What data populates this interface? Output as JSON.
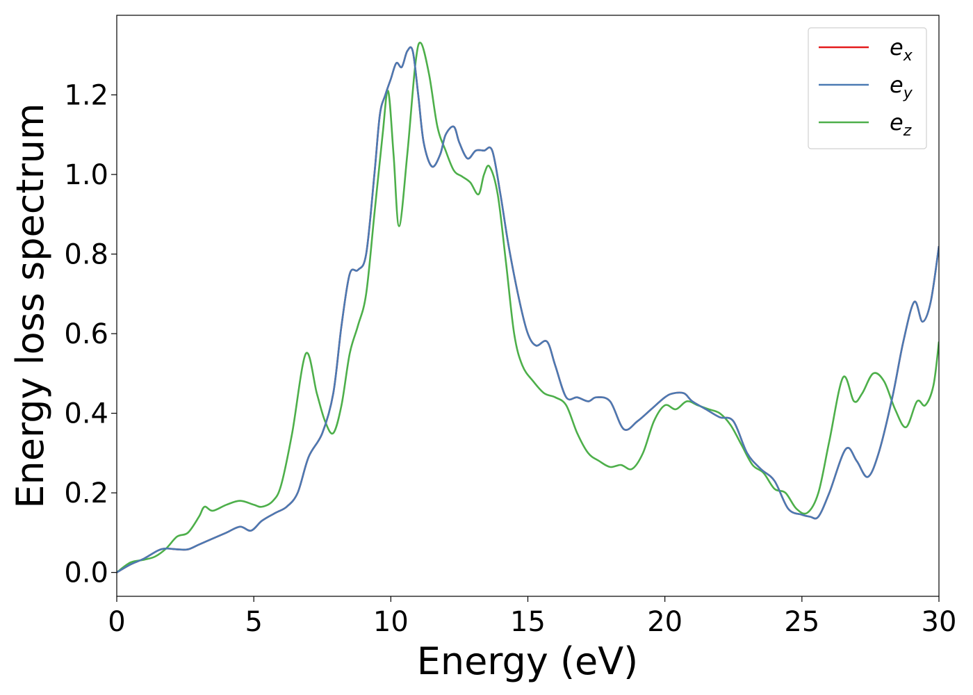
{
  "chart_data": {
    "type": "line",
    "xlabel": "Energy (eV)",
    "ylabel": "Energy loss spectrum",
    "xlim": [
      0,
      30
    ],
    "ylim": [
      -0.06,
      1.4
    ],
    "xticks": [
      0,
      5,
      10,
      15,
      20,
      25,
      30
    ],
    "xtick_labels": [
      "0",
      "5",
      "10",
      "15",
      "20",
      "25",
      "30"
    ],
    "yticks": [
      0.0,
      0.2,
      0.4,
      0.6,
      0.8,
      1.0,
      1.2
    ],
    "ytick_labels": [
      "0.0",
      "0.2",
      "0.4",
      "0.6",
      "0.8",
      "1.0",
      "1.2"
    ],
    "grid": false,
    "legend_position": "top-right",
    "series": [
      {
        "name": "e_x",
        "label_main": "e",
        "label_sub": "x",
        "color": "#e41a1c",
        "x": [
          0,
          0.5,
          1,
          1.5,
          1.8,
          2.2,
          2.6,
          3,
          3.5,
          4,
          4.5,
          4.9,
          5.3,
          5.8,
          6.2,
          6.6,
          7,
          7.5,
          7.9,
          8.2,
          8.5,
          8.8,
          9.1,
          9.4,
          9.6,
          9.8,
          10,
          10.2,
          10.4,
          10.6,
          10.8,
          11,
          11.2,
          11.5,
          11.8,
          12,
          12.3,
          12.5,
          12.8,
          13.1,
          13.4,
          13.7,
          14,
          14.3,
          14.7,
          15,
          15.3,
          15.7,
          16,
          16.4,
          16.8,
          17.2,
          17.5,
          18,
          18.5,
          19,
          19.5,
          20,
          20.3,
          20.7,
          21,
          21.5,
          22,
          22.5,
          23,
          23.5,
          24,
          24.5,
          25,
          25.3,
          25.6,
          26,
          26.6,
          27,
          27.4,
          27.8,
          28.3,
          28.7,
          29.1,
          29.4,
          29.7,
          30
        ],
        "values": [
          0.0,
          0.02,
          0.035,
          0.055,
          0.06,
          0.058,
          0.058,
          0.07,
          0.085,
          0.1,
          0.115,
          0.105,
          0.13,
          0.15,
          0.165,
          0.2,
          0.29,
          0.35,
          0.45,
          0.62,
          0.75,
          0.76,
          0.8,
          1.0,
          1.15,
          1.2,
          1.24,
          1.28,
          1.27,
          1.31,
          1.31,
          1.2,
          1.08,
          1.02,
          1.05,
          1.1,
          1.12,
          1.08,
          1.04,
          1.06,
          1.06,
          1.06,
          0.95,
          0.82,
          0.68,
          0.6,
          0.57,
          0.58,
          0.52,
          0.44,
          0.44,
          0.43,
          0.44,
          0.43,
          0.36,
          0.38,
          0.41,
          0.44,
          0.45,
          0.45,
          0.43,
          0.41,
          0.39,
          0.38,
          0.3,
          0.26,
          0.23,
          0.16,
          0.145,
          0.14,
          0.14,
          0.2,
          0.31,
          0.28,
          0.24,
          0.3,
          0.44,
          0.58,
          0.68,
          0.63,
          0.68,
          0.82
        ]
      },
      {
        "name": "e_y",
        "label_main": "e",
        "label_sub": "y",
        "color": "#4a7ab3",
        "x": [
          0,
          0.5,
          1,
          1.5,
          1.8,
          2.2,
          2.6,
          3,
          3.5,
          4,
          4.5,
          4.9,
          5.3,
          5.8,
          6.2,
          6.6,
          7,
          7.5,
          7.9,
          8.2,
          8.5,
          8.8,
          9.1,
          9.4,
          9.6,
          9.8,
          10,
          10.2,
          10.4,
          10.6,
          10.8,
          11,
          11.2,
          11.5,
          11.8,
          12,
          12.3,
          12.5,
          12.8,
          13.1,
          13.4,
          13.7,
          14,
          14.3,
          14.7,
          15,
          15.3,
          15.7,
          16,
          16.4,
          16.8,
          17.2,
          17.5,
          18,
          18.5,
          19,
          19.5,
          20,
          20.3,
          20.7,
          21,
          21.5,
          22,
          22.5,
          23,
          23.5,
          24,
          24.5,
          25,
          25.3,
          25.6,
          26,
          26.6,
          27,
          27.4,
          27.8,
          28.3,
          28.7,
          29.1,
          29.4,
          29.7,
          30
        ],
        "values": [
          0.0,
          0.02,
          0.035,
          0.055,
          0.06,
          0.058,
          0.058,
          0.07,
          0.085,
          0.1,
          0.115,
          0.105,
          0.13,
          0.15,
          0.165,
          0.2,
          0.29,
          0.35,
          0.45,
          0.62,
          0.75,
          0.76,
          0.8,
          1.0,
          1.15,
          1.2,
          1.24,
          1.28,
          1.27,
          1.31,
          1.31,
          1.2,
          1.08,
          1.02,
          1.05,
          1.1,
          1.12,
          1.08,
          1.04,
          1.06,
          1.06,
          1.06,
          0.95,
          0.82,
          0.68,
          0.6,
          0.57,
          0.58,
          0.52,
          0.44,
          0.44,
          0.43,
          0.44,
          0.43,
          0.36,
          0.38,
          0.41,
          0.44,
          0.45,
          0.45,
          0.43,
          0.41,
          0.39,
          0.38,
          0.3,
          0.26,
          0.23,
          0.16,
          0.145,
          0.14,
          0.14,
          0.2,
          0.31,
          0.28,
          0.24,
          0.3,
          0.44,
          0.58,
          0.68,
          0.63,
          0.68,
          0.82
        ]
      },
      {
        "name": "e_z",
        "label_main": "e",
        "label_sub": "z",
        "color": "#4daf4a",
        "x": [
          0,
          0.5,
          1,
          1.4,
          1.8,
          2.2,
          2.6,
          3,
          3.2,
          3.5,
          4,
          4.5,
          5,
          5.3,
          5.7,
          6,
          6.4,
          6.9,
          7.3,
          7.6,
          7.9,
          8.2,
          8.5,
          8.8,
          9.1,
          9.4,
          9.7,
          9.9,
          10.1,
          10.3,
          10.6,
          10.9,
          11.1,
          11.4,
          11.7,
          12,
          12.3,
          12.6,
          12.9,
          13.2,
          13.4,
          13.6,
          13.9,
          14.2,
          14.5,
          14.8,
          15.2,
          15.6,
          16,
          16.4,
          16.8,
          17.2,
          17.6,
          18,
          18.4,
          18.8,
          19.2,
          19.6,
          20,
          20.4,
          20.8,
          21.2,
          21.6,
          22,
          22.4,
          22.8,
          23.2,
          23.6,
          24,
          24.4,
          24.8,
          25.2,
          25.6,
          26,
          26.5,
          26.9,
          27.2,
          27.6,
          28,
          28.4,
          28.8,
          29.2,
          29.5,
          29.8,
          30
        ],
        "values": [
          0.0,
          0.025,
          0.032,
          0.04,
          0.06,
          0.09,
          0.1,
          0.14,
          0.165,
          0.155,
          0.17,
          0.18,
          0.17,
          0.165,
          0.18,
          0.22,
          0.35,
          0.55,
          0.45,
          0.38,
          0.35,
          0.42,
          0.55,
          0.62,
          0.7,
          0.9,
          1.1,
          1.21,
          1.05,
          0.87,
          1.05,
          1.28,
          1.33,
          1.25,
          1.12,
          1.06,
          1.01,
          0.995,
          0.98,
          0.95,
          1.0,
          1.02,
          0.95,
          0.78,
          0.6,
          0.52,
          0.48,
          0.45,
          0.44,
          0.42,
          0.35,
          0.3,
          0.28,
          0.265,
          0.27,
          0.26,
          0.3,
          0.38,
          0.42,
          0.41,
          0.43,
          0.42,
          0.41,
          0.4,
          0.37,
          0.32,
          0.27,
          0.25,
          0.21,
          0.2,
          0.16,
          0.15,
          0.2,
          0.33,
          0.49,
          0.43,
          0.45,
          0.5,
          0.48,
          0.41,
          0.365,
          0.43,
          0.42,
          0.47,
          0.58
        ]
      }
    ]
  }
}
